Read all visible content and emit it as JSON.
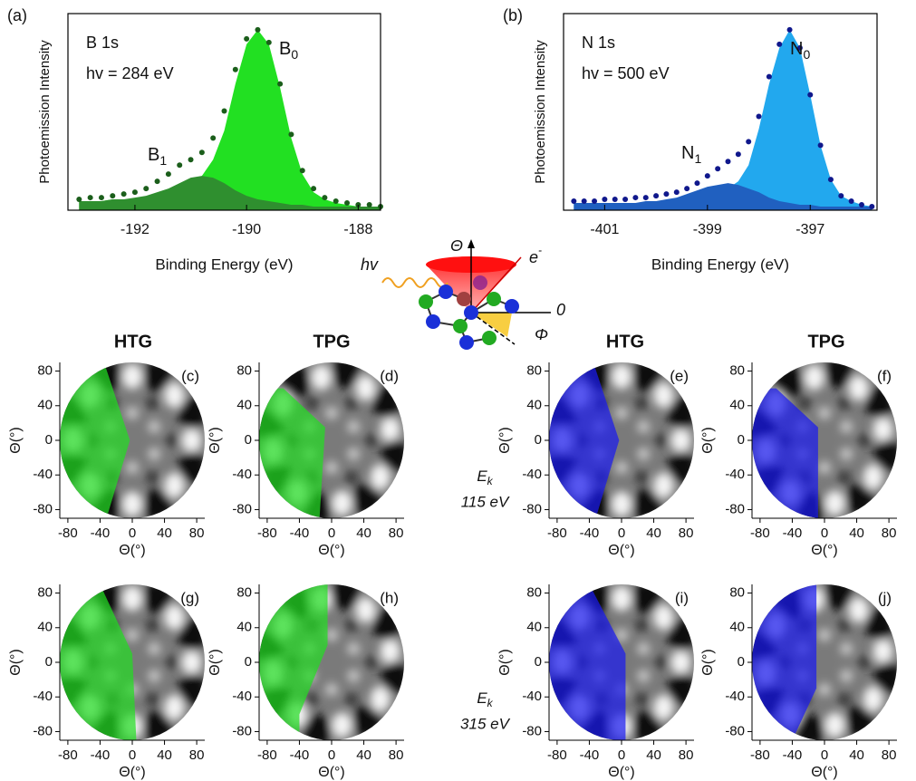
{
  "chart_data": [
    {
      "type": "spectrum",
      "panel_label": "(a)",
      "annotations": [
        "B 1s",
        "hv = 284 eV"
      ],
      "peak_labels": [
        {
          "text": "B",
          "sub": "1"
        },
        {
          "text": "B",
          "sub": "0"
        }
      ],
      "xlabel": "Binding Energy (eV)",
      "ylabel": "Photoemission Intensity",
      "xlim": [
        -193.2,
        -187.6
      ],
      "ylim": [
        0,
        1.09
      ],
      "xticks": [
        -192,
        -190,
        -188
      ],
      "x": [
        -193.0,
        -192.8,
        -192.6,
        -192.4,
        -192.2,
        -192.0,
        -191.8,
        -191.6,
        -191.4,
        -191.2,
        -191.0,
        -190.8,
        -190.6,
        -190.4,
        -190.2,
        -190.0,
        -189.8,
        -189.6,
        -189.4,
        -189.2,
        -189.0,
        -188.8,
        -188.6,
        -188.4,
        -188.2,
        -188.0,
        -187.8,
        -187.6
      ],
      "series": [
        {
          "color": "#22e022",
          "style": "area",
          "values": [
            0.05,
            0.05,
            0.05,
            0.06,
            0.06,
            0.06,
            0.07,
            0.08,
            0.09,
            0.11,
            0.14,
            0.19,
            0.28,
            0.44,
            0.7,
            0.92,
            1.0,
            0.92,
            0.68,
            0.4,
            0.2,
            0.1,
            0.06,
            0.04,
            0.03,
            0.02,
            0.02,
            0.02
          ]
        },
        {
          "color": "#2f8f2f",
          "style": "area",
          "values": [
            0.05,
            0.05,
            0.05,
            0.06,
            0.06,
            0.07,
            0.08,
            0.1,
            0.12,
            0.15,
            0.18,
            0.19,
            0.18,
            0.15,
            0.11,
            0.08,
            0.06,
            0.05,
            0.04,
            0.03,
            0.03,
            0.02,
            0.02,
            0.02,
            0.02,
            0.02,
            0.02,
            0.02
          ]
        },
        {
          "color": "#1b5e1b",
          "style": "dots",
          "values": [
            0.06,
            0.07,
            0.07,
            0.08,
            0.09,
            0.1,
            0.12,
            0.16,
            0.2,
            0.25,
            0.28,
            0.32,
            0.4,
            0.55,
            0.78,
            0.95,
            1.0,
            0.93,
            0.7,
            0.42,
            0.22,
            0.12,
            0.07,
            0.05,
            0.04,
            0.03,
            0.03,
            0.02
          ]
        }
      ]
    },
    {
      "type": "spectrum",
      "panel_label": "(b)",
      "annotations": [
        "N 1s",
        "hv = 500 eV"
      ],
      "peak_labels": [
        {
          "text": "N",
          "sub": "1"
        },
        {
          "text": "N",
          "sub": "0"
        }
      ],
      "xlabel": "Binding Energy (eV)",
      "ylabel": "Photoemission Intensity",
      "xlim": [
        -401.8,
        -395.7
      ],
      "ylim": [
        0,
        1.09
      ],
      "xticks": [
        -401,
        -399,
        -397
      ],
      "x": [
        -401.6,
        -401.4,
        -401.2,
        -401.0,
        -400.8,
        -400.6,
        -400.4,
        -400.2,
        -400.0,
        -399.8,
        -399.6,
        -399.4,
        -399.2,
        -399.0,
        -398.8,
        -398.6,
        -398.4,
        -398.2,
        -398.0,
        -397.8,
        -397.6,
        -397.4,
        -397.2,
        -397.0,
        -396.8,
        -396.6,
        -396.4,
        -396.2,
        -396.0,
        -395.8
      ],
      "series": [
        {
          "color": "#22a8ee",
          "style": "area",
          "values": [
            0.04,
            0.04,
            0.04,
            0.04,
            0.04,
            0.04,
            0.04,
            0.04,
            0.05,
            0.05,
            0.05,
            0.06,
            0.07,
            0.08,
            0.1,
            0.12,
            0.16,
            0.25,
            0.45,
            0.7,
            0.9,
            1.0,
            0.9,
            0.64,
            0.36,
            0.17,
            0.08,
            0.05,
            0.03,
            0.02
          ]
        },
        {
          "color": "#2060c0",
          "style": "area",
          "values": [
            0.04,
            0.04,
            0.04,
            0.04,
            0.04,
            0.04,
            0.04,
            0.05,
            0.05,
            0.06,
            0.07,
            0.09,
            0.11,
            0.13,
            0.14,
            0.15,
            0.14,
            0.12,
            0.1,
            0.07,
            0.05,
            0.04,
            0.03,
            0.03,
            0.02,
            0.02,
            0.02,
            0.02,
            0.02,
            0.02
          ]
        },
        {
          "color": "#10188c",
          "style": "dots",
          "values": [
            0.05,
            0.05,
            0.05,
            0.06,
            0.06,
            0.06,
            0.07,
            0.07,
            0.08,
            0.09,
            0.1,
            0.12,
            0.15,
            0.19,
            0.23,
            0.27,
            0.31,
            0.38,
            0.52,
            0.74,
            0.92,
            1.0,
            0.9,
            0.64,
            0.36,
            0.17,
            0.08,
            0.05,
            0.03,
            0.02
          ]
        }
      ]
    },
    {
      "type": "pattern",
      "panel_label": "(c)",
      "overlay_color": "#22dd22",
      "xlabel": "Θ(°)",
      "ylabel": "Θ(°)",
      "xlim": [
        -90,
        90
      ],
      "ylim": [
        -90,
        90
      ],
      "xticks": [
        -80,
        -40,
        0,
        40,
        80
      ],
      "yticks": [
        -80,
        -40,
        0,
        40,
        80
      ]
    },
    {
      "type": "pattern",
      "panel_label": "(d)",
      "overlay_color": "#22dd22",
      "xlabel": "Θ(°)",
      "ylabel": "Θ(°)",
      "xlim": [
        -90,
        90
      ],
      "ylim": [
        -90,
        90
      ],
      "xticks": [
        -80,
        -40,
        0,
        40,
        80
      ],
      "yticks": [
        -80,
        -40,
        0,
        40,
        80
      ]
    },
    {
      "type": "pattern",
      "panel_label": "(e)",
      "overlay_color": "#1a1aee",
      "xlabel": "Θ(°)",
      "ylabel": "Θ(°)",
      "xlim": [
        -90,
        90
      ],
      "ylim": [
        -90,
        90
      ],
      "xticks": [
        -80,
        -40,
        0,
        40,
        80
      ],
      "yticks": [
        -80,
        -40,
        0,
        40,
        80
      ]
    },
    {
      "type": "pattern",
      "panel_label": "(f)",
      "overlay_color": "#1a1aee",
      "xlabel": "Θ(°)",
      "ylabel": "Θ(°)",
      "xlim": [
        -90,
        90
      ],
      "ylim": [
        -90,
        90
      ],
      "xticks": [
        -80,
        -40,
        0,
        40,
        80
      ],
      "yticks": [
        -80,
        -40,
        0,
        40,
        80
      ]
    },
    {
      "type": "pattern",
      "panel_label": "(g)",
      "overlay_color": "#22dd22",
      "xlabel": "Θ(°)",
      "ylabel": "Θ(°)",
      "xlim": [
        -90,
        90
      ],
      "ylim": [
        -90,
        90
      ],
      "xticks": [
        -80,
        -40,
        0,
        40,
        80
      ],
      "yticks": [
        -80,
        -40,
        0,
        40,
        80
      ]
    },
    {
      "type": "pattern",
      "panel_label": "(h)",
      "overlay_color": "#22dd22",
      "xlabel": "Θ(°)",
      "ylabel": "Θ(°)",
      "xlim": [
        -90,
        90
      ],
      "ylim": [
        -90,
        90
      ],
      "xticks": [
        -80,
        -40,
        0,
        40,
        80
      ],
      "yticks": [
        -80,
        -40,
        0,
        40,
        80
      ]
    },
    {
      "type": "pattern",
      "panel_label": "(i)",
      "overlay_color": "#1a1aee",
      "xlabel": "Θ(°)",
      "ylabel": "Θ(°)",
      "xlim": [
        -90,
        90
      ],
      "ylim": [
        -90,
        90
      ],
      "xticks": [
        -80,
        -40,
        0,
        40,
        80
      ],
      "yticks": [
        -80,
        -40,
        0,
        40,
        80
      ]
    },
    {
      "type": "pattern",
      "panel_label": "(j)",
      "overlay_color": "#1a1aee",
      "xlabel": "Θ(°)",
      "ylabel": "Θ(°)",
      "xlim": [
        -90,
        90
      ],
      "ylim": [
        -90,
        90
      ],
      "xticks": [
        -80,
        -40,
        0,
        40,
        80
      ],
      "yticks": [
        -80,
        -40,
        0,
        40,
        80
      ]
    }
  ],
  "column_headers": [
    "HTG",
    "TPG",
    "HTG",
    "TPG"
  ],
  "energy_labels": [
    {
      "symbol": "E",
      "sub": "k",
      "value": "115 eV"
    },
    {
      "symbol": "E",
      "sub": "k",
      "value": "315 eV"
    }
  ],
  "schematic": {
    "theta": "Θ",
    "hv": "hv",
    "electron": "e",
    "electron_charge": "-",
    "zero": "0",
    "phi": "Φ"
  }
}
